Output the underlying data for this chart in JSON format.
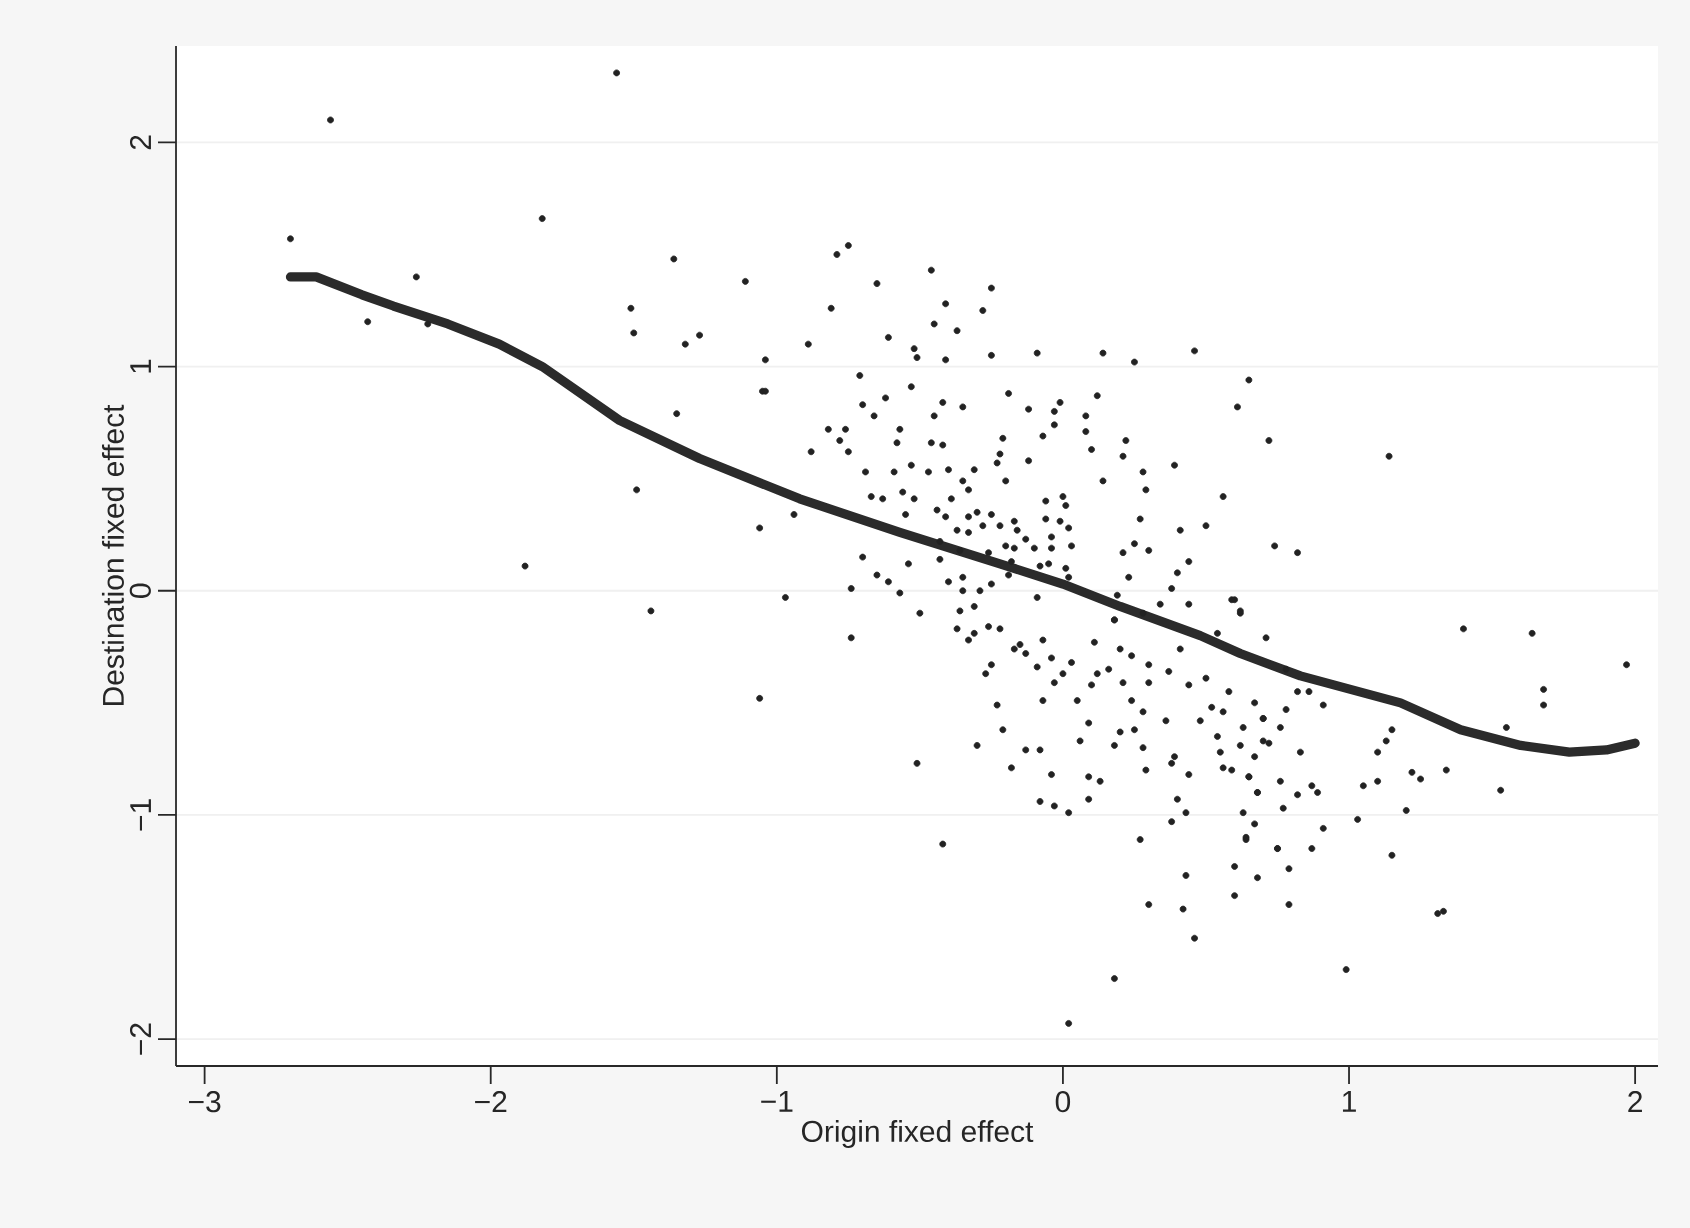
{
  "chart_data": {
    "type": "scatter",
    "xlabel": "Origin fixed effect",
    "ylabel": "Destination fixed effect",
    "xlim": [
      -3.1,
      2.08
    ],
    "ylim": [
      -2.12,
      2.43
    ],
    "xticks": [
      {
        "value": -3,
        "label": "−3"
      },
      {
        "value": -2,
        "label": "−2"
      },
      {
        "value": -1,
        "label": "−1"
      },
      0,
      1,
      2
    ],
    "yticks": [
      {
        "value": -2,
        "label": "−2"
      },
      {
        "value": -1,
        "label": "−1"
      },
      0,
      1,
      2
    ],
    "grid": "y",
    "series": [
      {
        "color": "#222222",
        "marker": "circle",
        "x": [
          -2.7,
          -2.56,
          -2.43,
          -2.26,
          -2.22,
          -1.82,
          -1.88,
          -1.56,
          -1.36,
          -1.51,
          -1.5,
          -1.32,
          -1.27,
          -1.35,
          -1.49,
          -1.44,
          -1.11,
          -1.04,
          -1.05,
          -1.06,
          -0.94,
          -0.97,
          -1.06,
          -0.79,
          -0.75,
          -0.81,
          -0.65,
          -0.46,
          -0.25,
          -0.41,
          -0.45,
          -0.37,
          -0.28,
          -0.61,
          -0.89,
          -0.52,
          -0.51,
          -0.41,
          -0.25,
          -0.09,
          0.14,
          0.25,
          0.46,
          -0.71,
          -1.04,
          -0.53,
          -0.7,
          -0.62,
          -0.66,
          -0.42,
          -0.35,
          -0.45,
          -0.19,
          -0.12,
          -0.01,
          -0.03,
          0.12,
          0.08,
          0.65,
          0.61,
          0.72,
          -0.82,
          -0.76,
          -0.78,
          -0.75,
          -0.88,
          -0.58,
          -0.57,
          -0.46,
          -0.42,
          -0.21,
          -0.22,
          -0.07,
          -0.03,
          0.08,
          0.1,
          -0.12,
          0.22,
          0.21,
          0.28,
          0.39,
          -0.69,
          -0.59,
          -0.53,
          -0.47,
          -0.4,
          -0.31,
          -0.23,
          -0.2,
          -0.35,
          0.14,
          0.29,
          -0.67,
          -0.63,
          -0.56,
          -0.52,
          -0.39,
          -0.33,
          -0.06,
          0.0,
          0.01,
          0.56,
          -0.55,
          -0.44,
          -0.41,
          -0.33,
          -0.3,
          -0.25,
          -0.17,
          -0.06,
          -0.01,
          0.27,
          0.5,
          -0.37,
          -0.28,
          -0.22,
          -0.33,
          -0.16,
          -0.13,
          -0.04,
          0.02,
          0.41,
          0.74,
          -0.7,
          -0.43,
          -0.36,
          -0.26,
          -0.2,
          -0.17,
          -0.1,
          -0.04,
          0.03,
          0.21,
          0.25,
          0.3,
          0.44,
          -0.54,
          -0.43,
          -0.18,
          -0.08,
          -0.05,
          0.01,
          -0.65,
          -0.61,
          -0.4,
          -0.35,
          -0.25,
          -0.19,
          0.02,
          0.23,
          0.4,
          -0.74,
          -0.57,
          -0.35,
          -0.29,
          -0.09,
          0.19,
          0.38,
          0.6,
          -0.5,
          -0.36,
          -0.31,
          0.18,
          0.28,
          0.34,
          0.44,
          0.62,
          -0.74,
          -0.37,
          -0.31,
          -0.33,
          -0.26,
          -0.22,
          -0.17,
          -0.27,
          -0.25,
          -0.23,
          -0.21,
          -0.3,
          -0.18,
          -0.51,
          -0.42,
          -0.13,
          -0.08,
          -0.04,
          -0.08,
          -0.03,
          0.02,
          -0.15,
          -0.13,
          -0.09,
          -0.07,
          -0.04,
          -0.03,
          -0.07,
          0.0,
          0.03,
          0.05,
          0.09,
          0.06,
          0.09,
          0.13,
          0.09,
          0.1,
          0.12,
          0.11,
          0.16,
          0.18,
          0.2,
          0.18,
          0.2,
          0.21,
          0.24,
          0.24,
          0.28,
          0.25,
          0.28,
          0.29,
          0.27,
          0.3,
          0.18,
          0.02,
          0.3,
          0.3,
          0.36,
          0.38,
          0.39,
          0.44,
          0.4,
          0.38,
          0.43,
          0.43,
          0.42,
          0.46,
          0.37,
          0.44,
          0.41,
          0.48,
          0.5,
          0.52,
          0.56,
          0.54,
          0.55,
          0.56,
          0.59,
          0.58,
          0.62,
          0.63,
          0.65,
          0.67,
          0.67,
          0.7,
          0.7,
          0.72,
          0.68,
          0.63,
          0.64,
          0.67,
          0.6,
          0.68,
          0.6,
          0.75,
          0.71,
          0.54,
          0.59,
          0.62,
          1.14,
          0.82,
          0.78,
          0.82,
          0.86,
          0.91,
          0.78,
          0.76,
          0.7,
          0.83,
          0.65,
          0.68,
          0.76,
          0.82,
          0.87,
          0.89,
          0.77,
          0.91,
          0.64,
          0.75,
          0.87,
          0.79,
          0.79,
          0.99,
          1.03,
          1.05,
          1.1,
          1.1,
          1.13,
          1.15,
          1.2,
          1.15,
          1.22,
          1.25,
          1.34,
          1.31,
          1.33,
          1.4,
          1.53,
          1.55,
          1.64,
          1.68,
          1.68,
          1.97
        ],
        "values": [
          1.57,
          2.1,
          1.2,
          1.4,
          1.19,
          1.66,
          0.11,
          2.31,
          1.48,
          1.26,
          1.15,
          1.1,
          1.14,
          0.79,
          0.45,
          -0.09,
          1.38,
          1.03,
          0.89,
          0.28,
          0.34,
          -0.03,
          -0.48,
          1.5,
          1.54,
          1.26,
          1.37,
          1.43,
          1.35,
          1.28,
          1.19,
          1.16,
          1.25,
          1.13,
          1.1,
          1.08,
          1.04,
          1.03,
          1.05,
          1.06,
          1.06,
          1.02,
          1.07,
          0.96,
          0.89,
          0.91,
          0.83,
          0.86,
          0.78,
          0.84,
          0.82,
          0.78,
          0.88,
          0.81,
          0.84,
          0.8,
          0.87,
          0.78,
          0.94,
          0.82,
          0.67,
          0.72,
          0.72,
          0.67,
          0.62,
          0.62,
          0.66,
          0.72,
          0.66,
          0.65,
          0.68,
          0.61,
          0.69,
          0.74,
          0.71,
          0.63,
          0.58,
          0.67,
          0.6,
          0.53,
          0.56,
          0.53,
          0.53,
          0.56,
          0.53,
          0.54,
          0.54,
          0.57,
          0.49,
          0.49,
          0.49,
          0.45,
          0.42,
          0.41,
          0.44,
          0.41,
          0.41,
          0.45,
          0.4,
          0.42,
          0.38,
          0.42,
          0.34,
          0.36,
          0.33,
          0.33,
          0.35,
          0.34,
          0.31,
          0.32,
          0.31,
          0.32,
          0.29,
          0.27,
          0.29,
          0.29,
          0.26,
          0.27,
          0.23,
          0.24,
          0.28,
          0.27,
          0.2,
          0.15,
          0.22,
          0.18,
          0.17,
          0.2,
          0.19,
          0.19,
          0.19,
          0.2,
          0.17,
          0.21,
          0.18,
          0.13,
          0.12,
          0.14,
          0.13,
          0.11,
          0.12,
          0.1,
          0.07,
          0.04,
          0.04,
          0.06,
          0.03,
          0.07,
          0.06,
          0.06,
          0.08,
          0.01,
          -0.01,
          0.0,
          0.0,
          -0.03,
          -0.02,
          0.01,
          -0.04,
          -0.1,
          -0.09,
          -0.07,
          -0.13,
          -0.1,
          -0.06,
          -0.06,
          -0.1,
          -0.21,
          -0.17,
          -0.19,
          -0.22,
          -0.16,
          -0.17,
          -0.26,
          -0.37,
          -0.33,
          -0.51,
          -0.62,
          -0.69,
          -0.79,
          -0.77,
          -1.13,
          -0.71,
          -0.71,
          -0.82,
          -0.94,
          -0.96,
          -0.99,
          -0.24,
          -0.28,
          -0.34,
          -0.22,
          -0.3,
          -0.41,
          -0.49,
          -0.37,
          -0.32,
          -0.49,
          -0.59,
          -0.67,
          -0.83,
          -0.85,
          -0.93,
          -0.42,
          -0.37,
          -0.23,
          -0.35,
          -0.69,
          -0.63,
          -0.13,
          -0.26,
          -0.41,
          -0.29,
          -0.49,
          -0.54,
          -0.62,
          -0.7,
          -0.8,
          -1.11,
          -1.4,
          -1.73,
          -1.93,
          -0.41,
          -0.33,
          -0.58,
          -0.77,
          -0.74,
          -0.82,
          -0.93,
          -1.03,
          -0.99,
          -1.27,
          -1.42,
          -1.55,
          -0.36,
          -0.42,
          -0.26,
          -0.58,
          -0.39,
          -0.52,
          -0.54,
          -0.65,
          -0.72,
          -0.79,
          -0.8,
          -0.45,
          -0.69,
          -0.61,
          -0.83,
          -0.5,
          -0.74,
          -0.57,
          -0.67,
          -0.68,
          -0.9,
          -0.99,
          -1.11,
          -1.04,
          -1.23,
          -1.28,
          -1.36,
          -1.15,
          -0.21,
          -0.19,
          -0.04,
          -0.09,
          0.6,
          0.17,
          -0.35,
          -0.45,
          -0.45,
          -0.51,
          -0.53,
          -0.61,
          -0.57,
          -0.72,
          -0.83,
          -0.9,
          -0.85,
          -0.91,
          -0.87,
          -0.9,
          -0.97,
          -1.06,
          -1.1,
          -1.15,
          -1.15,
          -1.24,
          -1.4,
          -1.69,
          -1.02,
          -0.87,
          -0.85,
          -0.72,
          -0.67,
          -0.62,
          -0.98,
          -1.18,
          -0.81,
          -0.84,
          -0.8,
          -1.44,
          -1.43,
          -0.17,
          -0.89,
          -0.61,
          -0.19,
          -0.44,
          -0.51,
          -0.33
        ]
      },
      {
        "type": "line",
        "color": "#2b2b2b",
        "marker": "none",
        "x": [
          -2.7,
          -2.61,
          -2.45,
          -2.34,
          -2.15,
          -1.97,
          -1.82,
          -1.55,
          -1.27,
          -0.92,
          -0.57,
          -0.22,
          0.0,
          0.2,
          0.48,
          0.62,
          0.83,
          1.18,
          1.39,
          1.6,
          1.77,
          1.9,
          2.0
        ],
        "values": [
          1.4,
          1.4,
          1.32,
          1.27,
          1.19,
          1.1,
          1.0,
          0.76,
          0.59,
          0.41,
          0.26,
          0.12,
          0.03,
          -0.07,
          -0.2,
          -0.28,
          -0.38,
          -0.5,
          -0.62,
          -0.69,
          -0.72,
          -0.71,
          -0.68
        ]
      }
    ]
  }
}
